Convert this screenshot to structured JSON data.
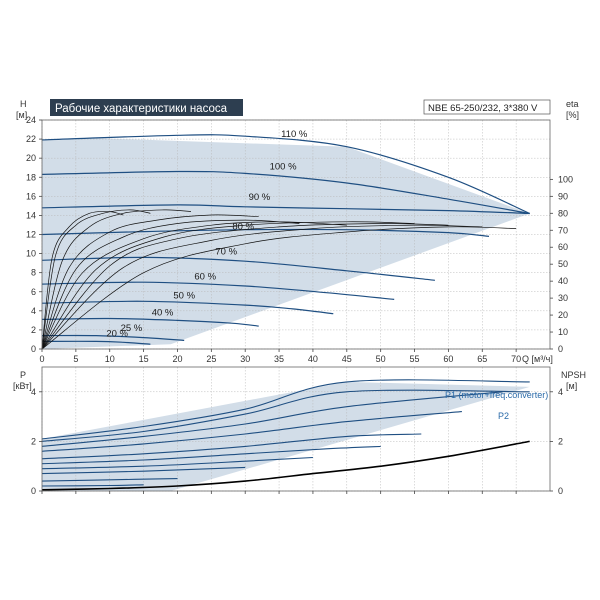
{
  "header": {
    "title": "Рабочие характеристики насоса",
    "model": "NBE 65-250/232, 3*380 V"
  },
  "chart_data": [
    {
      "type": "line",
      "panel": "performance",
      "title": "Рабочие характеристики насоса",
      "xlabel": "Q [м³/ч]",
      "ylabel_left": [
        "H",
        "[м]"
      ],
      "ylabel_right": [
        "eta",
        "[%]"
      ],
      "xlim": [
        0,
        75
      ],
      "ylim": [
        0,
        24
      ],
      "ylim_right": [
        0,
        135
      ],
      "x_ticks": [
        "0",
        "5",
        "10",
        "15",
        "20",
        "25",
        "30",
        "35",
        "40",
        "45",
        "50",
        "55",
        "60",
        "65",
        "70"
      ],
      "y_ticks": [
        "0",
        "2",
        "4",
        "6",
        "8",
        "10",
        "12",
        "14",
        "16",
        "18",
        "20",
        "22",
        "24"
      ],
      "y_ticks_right": [
        "0",
        "10",
        "20",
        "30",
        "40",
        "50",
        "60",
        "70",
        "80",
        "90",
        "100"
      ],
      "grid": true,
      "operating_area": [
        [
          0,
          0
        ],
        [
          0,
          21.8
        ],
        [
          8,
          22.1
        ],
        [
          45,
          21.2
        ],
        [
          72,
          14.2
        ],
        [
          19,
          0.5
        ]
      ],
      "series": [
        {
          "name": "110 %",
          "label_at": [
            35.3,
            22.2
          ],
          "x": [
            0,
            20,
            30,
            45,
            60,
            72
          ],
          "y": [
            21.9,
            22.4,
            22.3,
            21.2,
            18.0,
            14.2
          ]
        },
        {
          "name": "100 %",
          "label_at": [
            33.6,
            18.8
          ],
          "x": [
            0,
            20,
            30,
            45,
            60,
            72
          ],
          "y": [
            18.3,
            18.6,
            18.4,
            17.4,
            15.7,
            14.2
          ]
        },
        {
          "name": "90 %",
          "label_at": [
            30.5,
            15.6
          ],
          "x": [
            0,
            20,
            30,
            45,
            60,
            72
          ],
          "y": [
            14.8,
            15.1,
            14.9,
            14.7,
            14.5,
            14.2
          ]
        },
        {
          "name": "80 %",
          "label_at": [
            28.1,
            12.5
          ],
          "x": [
            0,
            15,
            30,
            45,
            60,
            66
          ],
          "y": [
            12.0,
            12.3,
            12.5,
            12.5,
            12.2,
            11.8
          ]
        },
        {
          "name": "70 %",
          "label_at": [
            25.6,
            9.9
          ],
          "x": [
            0,
            15,
            30,
            45,
            58
          ],
          "y": [
            9.3,
            9.6,
            9.2,
            8.2,
            7.2
          ]
        },
        {
          "name": "60 %",
          "label_at": [
            22.5,
            7.3
          ],
          "x": [
            0,
            15,
            30,
            42,
            52
          ],
          "y": [
            6.8,
            7.0,
            6.6,
            5.9,
            5.2
          ]
        },
        {
          "name": "50 %",
          "label_at": [
            19.4,
            5.3
          ],
          "x": [
            0,
            15,
            30,
            37,
            43
          ],
          "y": [
            4.8,
            5.0,
            4.6,
            4.2,
            3.7
          ]
        },
        {
          "name": "40 %",
          "label_at": [
            16.2,
            3.5
          ],
          "x": [
            0,
            10,
            20,
            28,
            32
          ],
          "y": [
            3.1,
            3.2,
            3.0,
            2.7,
            2.4
          ]
        },
        {
          "name": "25 %",
          "label_at": [
            11.6,
            1.9
          ],
          "x": [
            0,
            8,
            15,
            21
          ],
          "y": [
            1.4,
            1.4,
            1.2,
            0.9
          ]
        },
        {
          "name": "20 %",
          "label_at": [
            9.5,
            1.3
          ],
          "x": [
            0,
            8,
            12,
            16
          ],
          "y": [
            0.8,
            0.8,
            0.7,
            0.5
          ]
        }
      ],
      "eta_curves": [
        {
          "x": [
            0,
            15,
            30,
            45,
            60,
            70
          ],
          "y": [
            0,
            45,
            62,
            69,
            72,
            71
          ]
        },
        {
          "x": [
            0,
            12,
            25,
            40,
            55,
            65
          ],
          "y": [
            0,
            48,
            64,
            71,
            73,
            72
          ]
        },
        {
          "x": [
            0,
            10,
            20,
            35,
            50,
            60
          ],
          "y": [
            0,
            49,
            65,
            72,
            74,
            73
          ]
        },
        {
          "x": [
            0,
            8,
            18,
            30,
            45,
            55
          ],
          "y": [
            0,
            47,
            66,
            73,
            75,
            74
          ]
        },
        {
          "x": [
            0,
            6,
            15,
            25,
            35,
            45
          ],
          "y": [
            0,
            45,
            65,
            73,
            75,
            73
          ]
        },
        {
          "x": [
            0,
            5,
            12,
            20,
            30,
            38
          ],
          "y": [
            0,
            47,
            66,
            74,
            76,
            74
          ]
        },
        {
          "x": [
            0,
            4,
            10,
            17,
            25,
            32
          ],
          "y": [
            0,
            48,
            69,
            76,
            79,
            78
          ]
        },
        {
          "x": [
            0,
            3,
            7,
            12,
            18,
            22
          ],
          "y": [
            0,
            52,
            72,
            80,
            82,
            81
          ]
        },
        {
          "x": [
            0,
            2,
            5,
            9,
            13,
            16
          ],
          "y": [
            0,
            55,
            73,
            80,
            82,
            80
          ]
        },
        {
          "x": [
            0,
            1.5,
            4,
            7,
            10,
            12
          ],
          "y": [
            0,
            54,
            72,
            80,
            81,
            79
          ]
        }
      ]
    },
    {
      "type": "line",
      "panel": "power",
      "ylabel_left": [
        "P",
        "[кВт]"
      ],
      "ylabel_right": [
        "NPSH",
        "[м]"
      ],
      "xlim": [
        0,
        75
      ],
      "ylim": [
        0,
        5
      ],
      "y_ticks": [
        "0",
        "2",
        "4"
      ],
      "y_ticks_right": [
        "0",
        "2",
        "4"
      ],
      "grid": true,
      "legend": [
        "P1 (motor+freq.converter)",
        "P2"
      ],
      "operating_area": [
        [
          0,
          0
        ],
        [
          0,
          2.1
        ],
        [
          45,
          4.4
        ],
        [
          72,
          4.2
        ],
        [
          19,
          0
        ]
      ],
      "series": [
        {
          "name": "P1 (motor+freq.converter)",
          "x": [
            0,
            15,
            30,
            45,
            72
          ],
          "y": [
            2.1,
            2.6,
            3.3,
            4.4,
            4.4
          ]
        },
        {
          "name": "P2",
          "x": [
            0,
            15,
            30,
            45,
            72
          ],
          "y": [
            2.0,
            2.4,
            3.1,
            4.0,
            4.0
          ]
        },
        {
          "name": "",
          "x": [
            0,
            15,
            30,
            45,
            68
          ],
          "y": [
            1.8,
            2.2,
            2.7,
            3.4,
            4.0
          ]
        },
        {
          "name": "",
          "x": [
            0,
            15,
            30,
            45,
            62
          ],
          "y": [
            1.6,
            1.9,
            2.3,
            2.8,
            3.2
          ]
        },
        {
          "name": "",
          "x": [
            0,
            15,
            30,
            45,
            56
          ],
          "y": [
            1.3,
            1.5,
            1.8,
            2.2,
            2.3
          ]
        },
        {
          "name": "",
          "x": [
            0,
            15,
            30,
            42,
            50
          ],
          "y": [
            1.1,
            1.25,
            1.5,
            1.7,
            1.8
          ]
        },
        {
          "name": "",
          "x": [
            0,
            15,
            30,
            40
          ],
          "y": [
            0.9,
            1.0,
            1.2,
            1.35
          ]
        },
        {
          "name": "",
          "x": [
            0,
            15,
            25,
            30
          ],
          "y": [
            0.7,
            0.8,
            0.9,
            0.95
          ]
        },
        {
          "name": "",
          "x": [
            0,
            10,
            20
          ],
          "y": [
            0.4,
            0.45,
            0.5
          ]
        },
        {
          "name": "",
          "x": [
            0,
            10,
            15
          ],
          "y": [
            0.2,
            0.22,
            0.25
          ]
        }
      ],
      "npsh": {
        "x": [
          0,
          10,
          20,
          30,
          40,
          50,
          60,
          72
        ],
        "y": [
          0.05,
          0.1,
          0.2,
          0.4,
          0.7,
          1.0,
          1.4,
          2.0
        ]
      }
    }
  ],
  "colors": {
    "area": "#cdd9e6",
    "curve": "#1f4f82",
    "eta": "#111111",
    "grid": "#b8b8b8",
    "title_bg": "#2d3e50",
    "legend": "#2a6aa8"
  }
}
